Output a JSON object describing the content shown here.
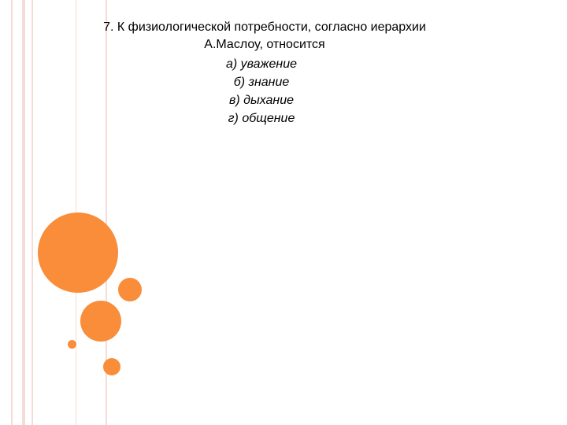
{
  "slide": {
    "question_line_1": "7. К физиологической потребности, согласно иерархии",
    "question_line_2": "А.Маслоу, относится",
    "answers": [
      "а) уважение",
      "б) знание",
      "в) дыхание",
      "г) общение"
    ]
  },
  "colors": {
    "accent": "#f98d3a",
    "stripe": "#f6dcd6",
    "text": "#000000",
    "background": "#ffffff"
  }
}
